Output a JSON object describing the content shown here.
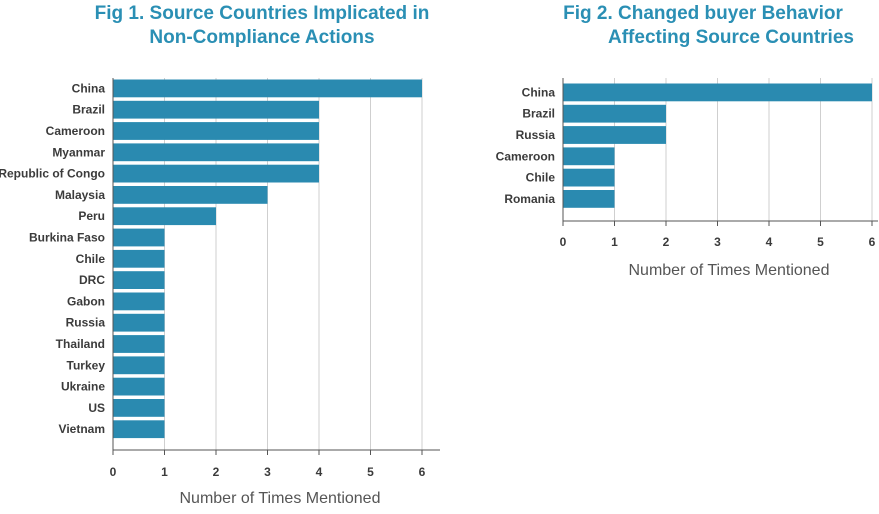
{
  "chart_data": [
    {
      "type": "bar",
      "orientation": "horizontal",
      "title": [
        "Fig 1. Source Countries Implicated in",
        "Non-Compliance Actions"
      ],
      "xlabel": "Number of Times Mentioned",
      "ylabel": "",
      "xlim": [
        0,
        6
      ],
      "xticks": [
        0,
        1,
        2,
        3,
        4,
        5,
        6
      ],
      "grid": true,
      "bar_color": "#2a8ab0",
      "categories": [
        "China",
        "Brazil",
        "Cameroon",
        "Myanmar",
        "Republic of Congo",
        "Malaysia",
        "Peru",
        "Burkina Faso",
        "Chile",
        "DRC",
        "Gabon",
        "Russia",
        "Thailand",
        "Turkey",
        "Ukraine",
        "US",
        "Vietnam"
      ],
      "values": [
        6,
        4,
        4,
        4,
        4,
        3,
        2,
        1,
        1,
        1,
        1,
        1,
        1,
        1,
        1,
        1,
        1
      ]
    },
    {
      "type": "bar",
      "orientation": "horizontal",
      "title": [
        "Fig 2. Changed buyer Behavior",
        "Affecting Source Countries"
      ],
      "xlabel": "Number of Times Mentioned",
      "ylabel": "",
      "xlim": [
        0,
        6
      ],
      "xticks": [
        0,
        1,
        2,
        3,
        4,
        5,
        6
      ],
      "grid": true,
      "bar_color": "#2a8ab0",
      "categories": [
        "China",
        "Brazil",
        "Russia",
        "Cameroon",
        "Chile",
        "Romania"
      ],
      "values": [
        6,
        2,
        2,
        1,
        1,
        1
      ]
    }
  ]
}
